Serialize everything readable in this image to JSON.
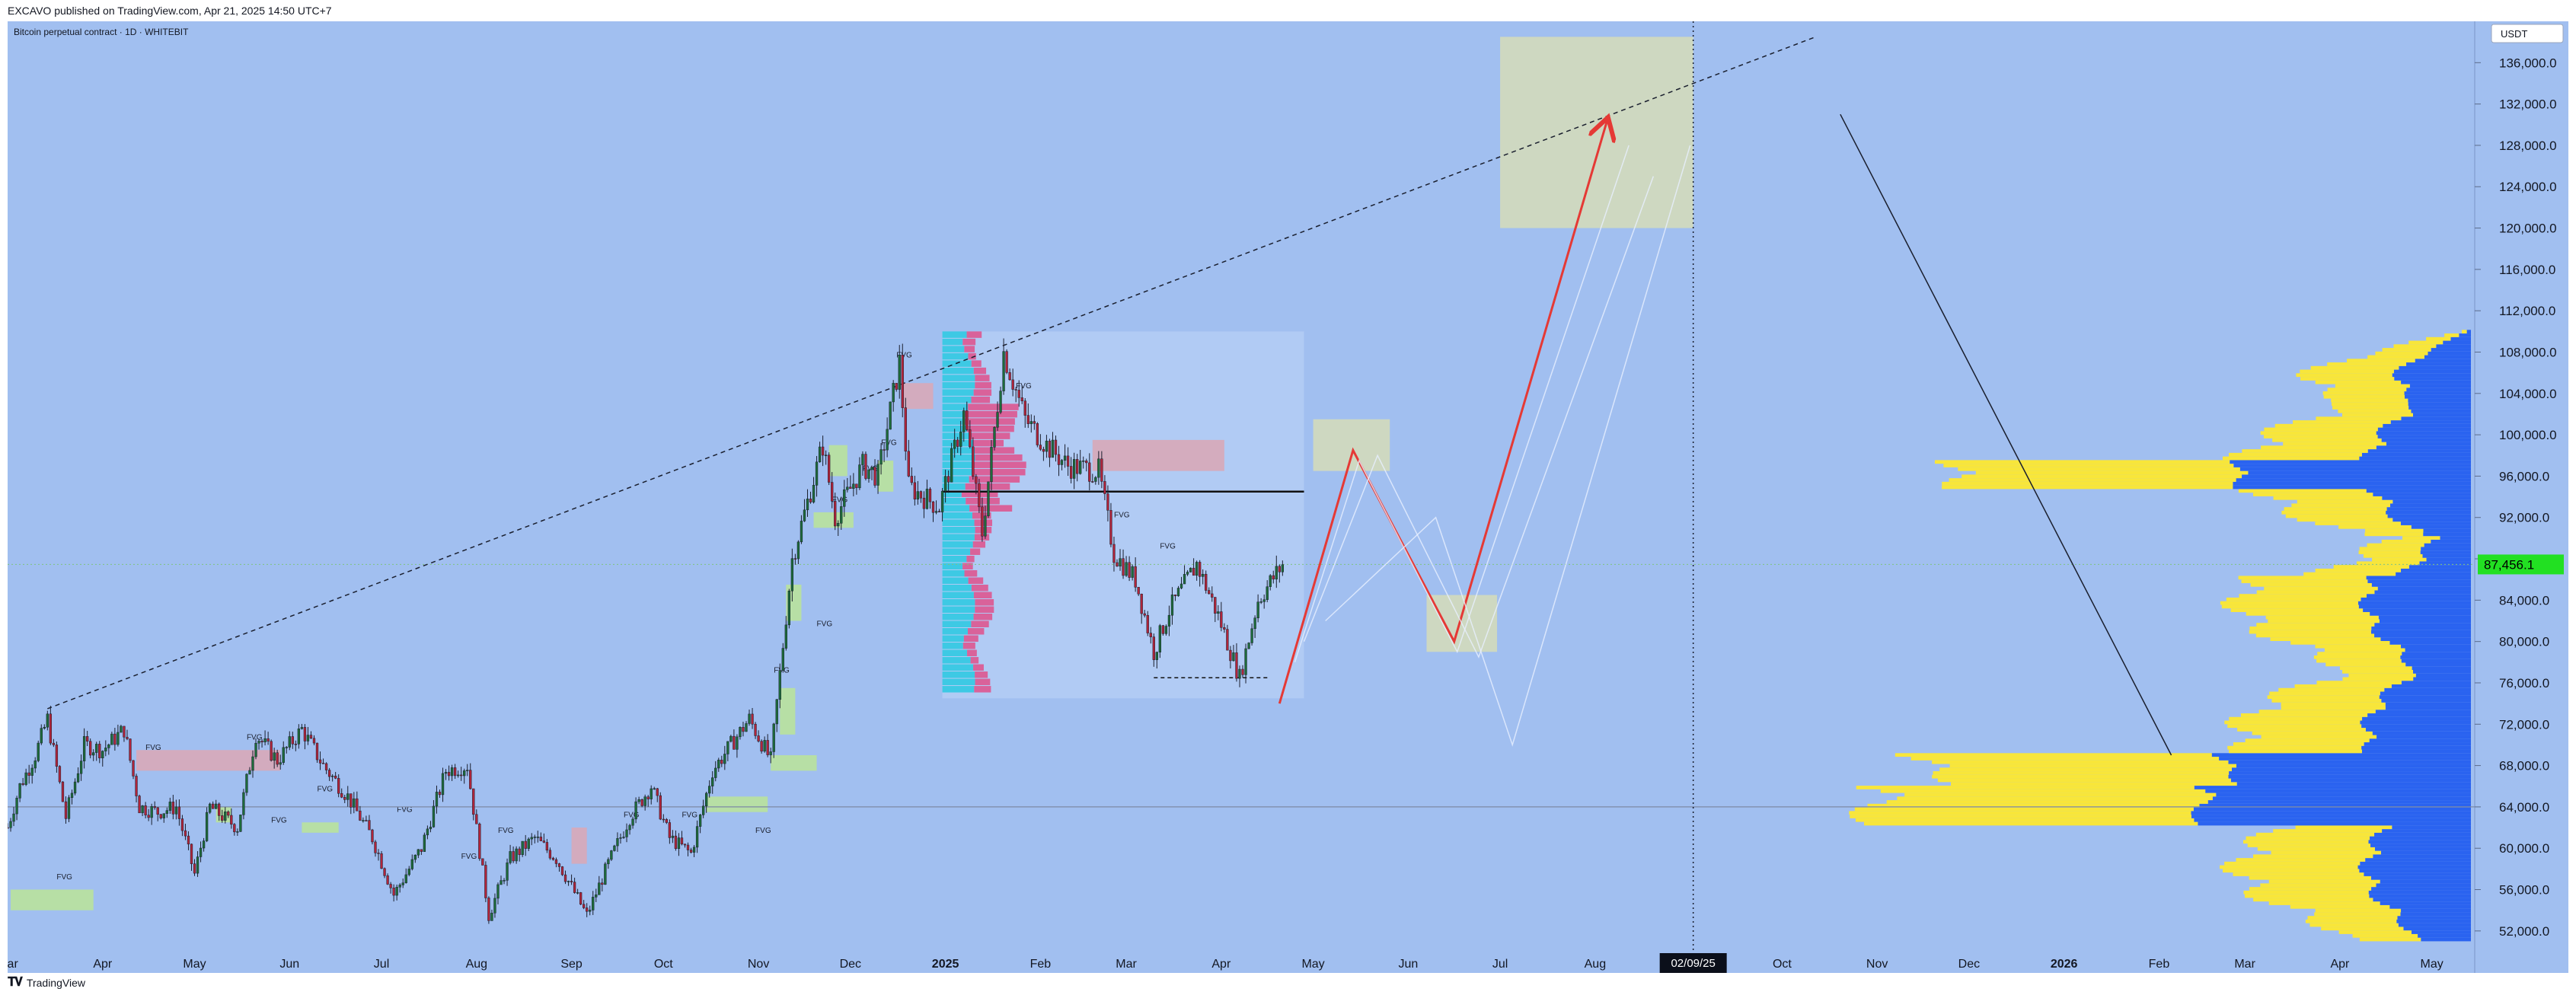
{
  "header": {
    "published_line": "EXCAVO published on TradingView.com, Apr 21, 2025 14:50 UTC+7"
  },
  "chart": {
    "symbol_line": "Bitcoin perpetual contract · 1D · WHITEBIT",
    "currency_button": "USDT",
    "price_label": "87,456.1",
    "date_marker": "02/09/25"
  },
  "footer": {
    "brand": "TradingView"
  },
  "chart_data": {
    "type": "line",
    "title": "",
    "xlabel": "",
    "ylabel": "",
    "ylim": [
      50000,
      140000
    ],
    "xlim": [
      "2024-03-01",
      "2026-05-15"
    ],
    "x_ticks": [
      {
        "label": "Mar",
        "date": "2024-03-01",
        "bold": false
      },
      {
        "label": "Apr",
        "date": "2024-04-01",
        "bold": false
      },
      {
        "label": "May",
        "date": "2024-05-01",
        "bold": false
      },
      {
        "label": "Jun",
        "date": "2024-06-01",
        "bold": false
      },
      {
        "label": "Jul",
        "date": "2024-07-01",
        "bold": false
      },
      {
        "label": "Aug",
        "date": "2024-08-01",
        "bold": false
      },
      {
        "label": "Sep",
        "date": "2024-09-01",
        "bold": false
      },
      {
        "label": "Oct",
        "date": "2024-10-01",
        "bold": false
      },
      {
        "label": "Nov",
        "date": "2024-11-01",
        "bold": false
      },
      {
        "label": "Dec",
        "date": "2024-12-01",
        "bold": false
      },
      {
        "label": "2025",
        "date": "2025-01-01",
        "bold": true
      },
      {
        "label": "Feb",
        "date": "2025-02-01",
        "bold": false
      },
      {
        "label": "Mar",
        "date": "2025-03-01",
        "bold": false
      },
      {
        "label": "Apr",
        "date": "2025-04-01",
        "bold": false
      },
      {
        "label": "May",
        "date": "2025-05-01",
        "bold": false
      },
      {
        "label": "Jun",
        "date": "2025-06-01",
        "bold": false
      },
      {
        "label": "Jul",
        "date": "2025-07-01",
        "bold": false
      },
      {
        "label": "Aug",
        "date": "2025-08-01",
        "bold": false
      },
      {
        "label": "Oct",
        "date": "2025-10-01",
        "bold": false
      },
      {
        "label": "Nov",
        "date": "2025-11-01",
        "bold": false
      },
      {
        "label": "Dec",
        "date": "2025-12-01",
        "bold": false
      },
      {
        "label": "2026",
        "date": "2026-01-01",
        "bold": true
      },
      {
        "label": "Feb",
        "date": "2026-02-01",
        "bold": false
      },
      {
        "label": "Mar",
        "date": "2026-03-01",
        "bold": false
      },
      {
        "label": "Apr",
        "date": "2026-04-01",
        "bold": false
      },
      {
        "label": "May",
        "date": "2026-05-01",
        "bold": false
      }
    ],
    "y_ticks": [
      {
        "label": "52,000.0",
        "value": 52000
      },
      {
        "label": "56,000.0",
        "value": 56000
      },
      {
        "label": "60,000.0",
        "value": 60000
      },
      {
        "label": "64,000.0",
        "value": 64000
      },
      {
        "label": "68,000.0",
        "value": 68000
      },
      {
        "label": "72,000.0",
        "value": 72000
      },
      {
        "label": "76,000.0",
        "value": 76000
      },
      {
        "label": "80,000.0",
        "value": 80000
      },
      {
        "label": "84,000.0",
        "value": 84000
      },
      {
        "label": "88,000.0",
        "value": 88000
      },
      {
        "label": "92,000.0",
        "value": 92000
      },
      {
        "label": "96,000.0",
        "value": 96000
      },
      {
        "label": "100,000.0",
        "value": 100000
      },
      {
        "label": "104,000.0",
        "value": 104000
      },
      {
        "label": "108,000.0",
        "value": 108000
      },
      {
        "label": "112,000.0",
        "value": 112000
      },
      {
        "label": "116,000.0",
        "value": 116000
      },
      {
        "label": "120,000.0",
        "value": 120000
      },
      {
        "label": "124,000.0",
        "value": 124000
      },
      {
        "label": "128,000.0",
        "value": 128000
      },
      {
        "label": "132,000.0",
        "value": 132000
      },
      {
        "label": "136,000.0",
        "value": 136000
      }
    ],
    "price_path": [
      [
        "2024-03-01",
        62000
      ],
      [
        "2024-03-05",
        66000
      ],
      [
        "2024-03-10",
        69000
      ],
      [
        "2024-03-14",
        72500
      ],
      [
        "2024-03-20",
        63000
      ],
      [
        "2024-03-26",
        70000
      ],
      [
        "2024-04-01",
        69500
      ],
      [
        "2024-04-08",
        71500
      ],
      [
        "2024-04-13",
        64000
      ],
      [
        "2024-04-19",
        63500
      ],
      [
        "2024-04-25",
        64000
      ],
      [
        "2024-05-01",
        57500
      ],
      [
        "2024-05-06",
        64000
      ],
      [
        "2024-05-15",
        62000
      ],
      [
        "2024-05-21",
        71000
      ],
      [
        "2024-05-28",
        68500
      ],
      [
        "2024-06-05",
        71500
      ],
      [
        "2024-06-12",
        68000
      ],
      [
        "2024-06-20",
        65000
      ],
      [
        "2024-06-28",
        61000
      ],
      [
        "2024-07-05",
        55500
      ],
      [
        "2024-07-14",
        60000
      ],
      [
        "2024-07-22",
        67500
      ],
      [
        "2024-07-29",
        68000
      ],
      [
        "2024-08-05",
        53500
      ],
      [
        "2024-08-12",
        59000
      ],
      [
        "2024-08-20",
        61000
      ],
      [
        "2024-08-27",
        59000
      ],
      [
        "2024-09-06",
        53500
      ],
      [
        "2024-09-13",
        58500
      ],
      [
        "2024-09-20",
        63000
      ],
      [
        "2024-09-27",
        66000
      ],
      [
        "2024-10-03",
        61000
      ],
      [
        "2024-10-10",
        59500
      ],
      [
        "2024-10-17",
        67500
      ],
      [
        "2024-10-29",
        72500
      ],
      [
        "2024-11-05",
        68500
      ],
      [
        "2024-11-12",
        88000
      ],
      [
        "2024-11-22",
        99000
      ],
      [
        "2024-11-26",
        92000
      ],
      [
        "2024-12-05",
        97000
      ],
      [
        "2024-12-10",
        96000
      ],
      [
        "2024-12-17",
        107000
      ],
      [
        "2024-12-20",
        95000
      ],
      [
        "2024-12-30",
        93000
      ],
      [
        "2025-01-07",
        102000
      ],
      [
        "2025-01-13",
        90500
      ],
      [
        "2025-01-20",
        108000
      ],
      [
        "2025-01-27",
        101500
      ],
      [
        "2025-02-03",
        99000
      ],
      [
        "2025-02-10",
        97000
      ],
      [
        "2025-02-20",
        96500
      ],
      [
        "2025-02-25",
        88500
      ],
      [
        "2025-03-04",
        86000
      ],
      [
        "2025-03-10",
        79000
      ],
      [
        "2025-03-15",
        83000
      ],
      [
        "2025-03-24",
        87500
      ],
      [
        "2025-03-31",
        82500
      ],
      [
        "2025-04-07",
        76500
      ],
      [
        "2025-04-13",
        84000
      ],
      [
        "2025-04-21",
        87456
      ]
    ],
    "projection_path": [
      [
        "2025-04-20",
        74000
      ],
      [
        "2025-05-14",
        98500
      ],
      [
        "2025-06-16",
        80000
      ],
      [
        "2025-08-05",
        130500
      ]
    ],
    "trendline": [
      [
        "2024-03-14",
        73500
      ],
      [
        "2025-10-12",
        138500
      ]
    ],
    "long_diagonal": [
      [
        "2025-10-20",
        131000
      ],
      [
        "2026-02-05",
        69000
      ]
    ],
    "date_marker_date": "2025-09-02",
    "current_price": 87456.1,
    "h_lines": [
      64000
    ],
    "series": [
      {
        "name": "",
        "values": []
      }
    ]
  }
}
